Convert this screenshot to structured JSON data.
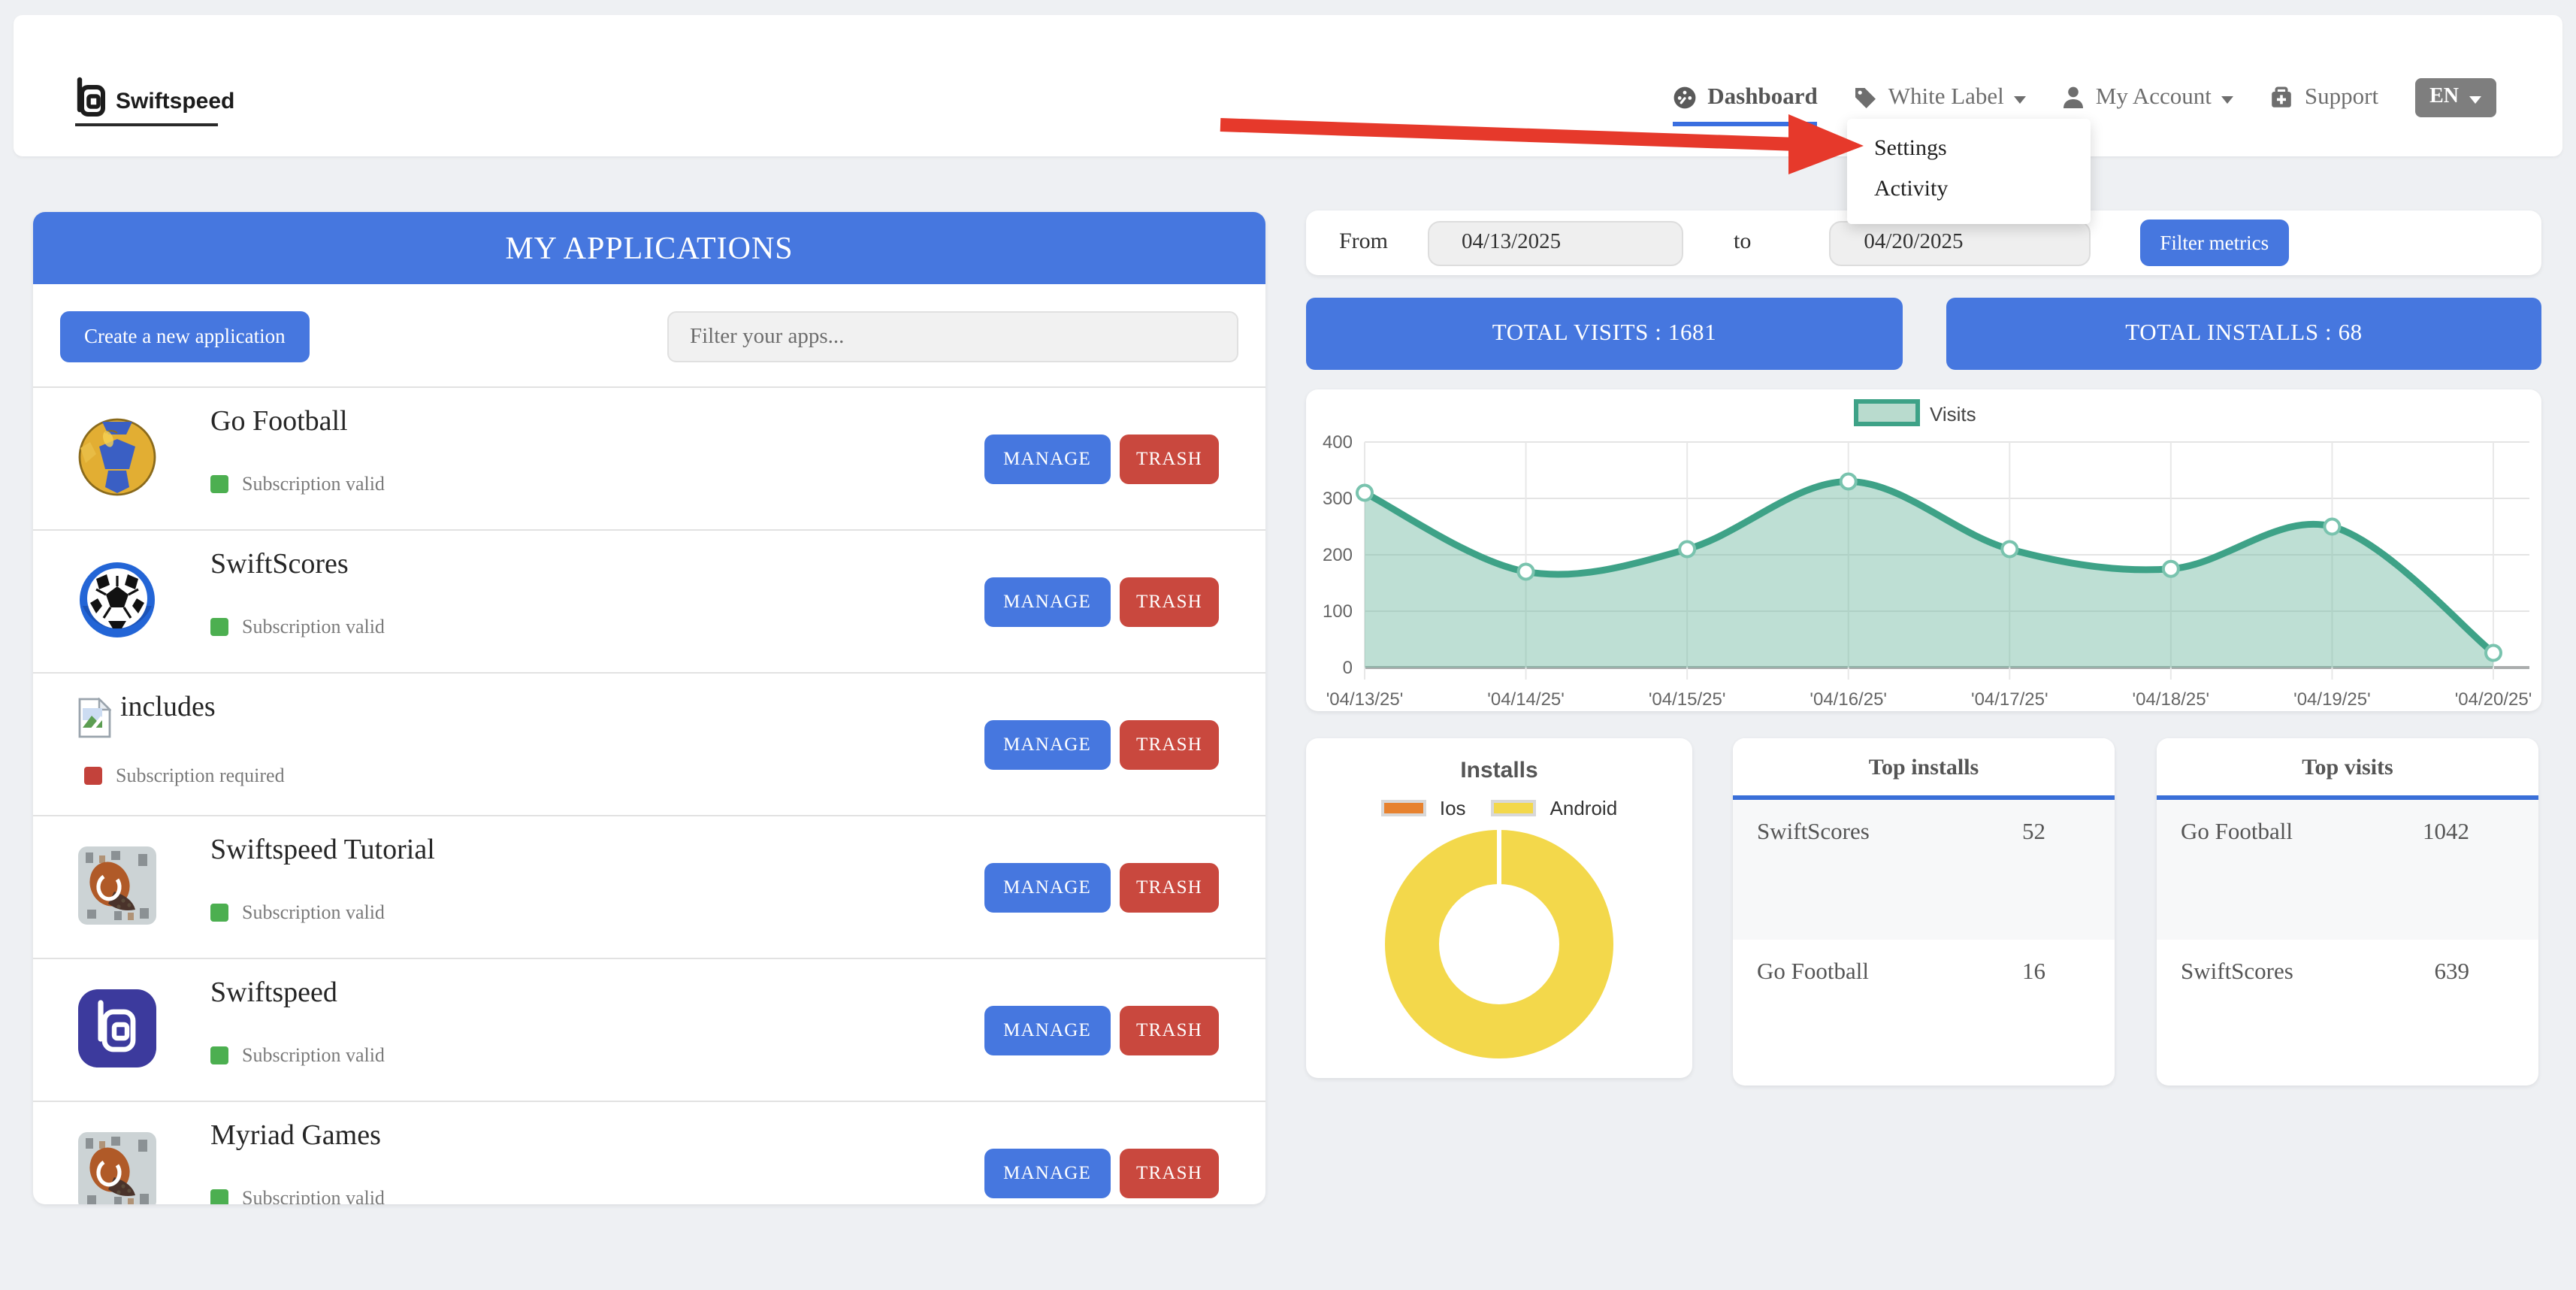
{
  "page": {
    "background": "#eef0f3",
    "accent_blue": "#4677df",
    "danger_red": "#c9483e",
    "valid_green": "#4caf50",
    "required_red": "#c3423b"
  },
  "header": {
    "brand": "Swiftspeed",
    "nav": {
      "dashboard": "Dashboard",
      "white_label": "White Label",
      "my_account": "My Account",
      "support": "Support",
      "language": "EN"
    },
    "white_label_menu": {
      "items": [
        {
          "label": "Settings"
        },
        {
          "label": "Activity"
        }
      ]
    }
  },
  "apps_panel": {
    "title": "MY APPLICATIONS",
    "create_button": "Create a new application",
    "filter_placeholder": "Filter your apps...",
    "manage_label": "MANAGE",
    "trash_label": "TRASH",
    "apps": [
      {
        "name": "Go Football",
        "status": "Subscription valid"
      },
      {
        "name": "SwiftScores",
        "status": "Subscription valid"
      },
      {
        "name": "includes",
        "status": "Subscription required"
      },
      {
        "name": "Swiftspeed Tutorial",
        "status": "Subscription valid"
      },
      {
        "name": "Swiftspeed",
        "status": "Subscription valid"
      },
      {
        "name": "Myriad Games",
        "status": "Subscription valid"
      }
    ]
  },
  "metrics": {
    "from_label": "From",
    "from_value": "04/13/2025",
    "to_label": "to",
    "to_value": "04/20/2025",
    "filter_button": "Filter metrics",
    "total_visits_banner": "TOTAL VISITS : 1681",
    "total_installs_banner": "TOTAL INSTALLS : 68"
  },
  "chart_data": [
    {
      "type": "area",
      "title": "",
      "series": [
        {
          "name": "Visits",
          "values": [
            310,
            170,
            210,
            330,
            210,
            175,
            250,
            26
          ]
        }
      ],
      "x_labels": [
        "'04/13/25'",
        "'04/14/25'",
        "'04/15/25'",
        "'04/16/25'",
        "'04/17/25'",
        "'04/18/25'",
        "'04/19/25'",
        "'04/20/25'"
      ],
      "ylim": [
        0,
        400
      ],
      "y_ticks": [
        0,
        100,
        200,
        300,
        400
      ],
      "grid": true,
      "legend_position": "top",
      "line_color": "#3ea287",
      "fill_color": "rgba(111,185,160,0.45)"
    },
    {
      "type": "donut",
      "title": "Installs",
      "categories": [
        "Ios",
        "Android"
      ],
      "values": [
        0,
        68
      ],
      "colors": [
        "#e7822f",
        "#f3d84b"
      ],
      "legend_position": "top"
    },
    {
      "type": "table",
      "title": "Top installs",
      "rows": [
        {
          "app": "SwiftScores",
          "value": 52
        },
        {
          "app": "Go Football",
          "value": 16
        }
      ]
    },
    {
      "type": "table",
      "title": "Top visits",
      "rows": [
        {
          "app": "Go Football",
          "value": 1042
        },
        {
          "app": "SwiftScores",
          "value": 639
        }
      ]
    }
  ]
}
